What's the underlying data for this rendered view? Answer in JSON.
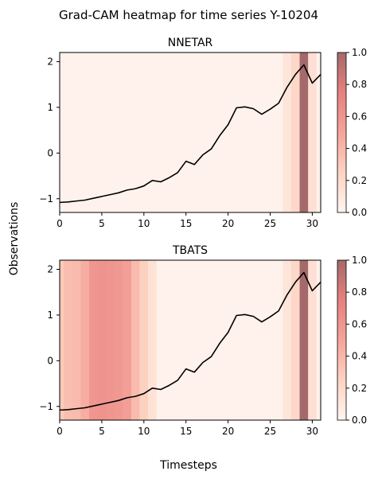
{
  "title": "Grad-CAM heatmap for time series Y-10204",
  "xlabel": "Timesteps",
  "ylabel": "Observations",
  "chart_data": [
    {
      "type": "line",
      "title": "NNETAR",
      "x": [
        0,
        1,
        2,
        3,
        4,
        5,
        6,
        7,
        8,
        9,
        10,
        11,
        12,
        13,
        14,
        15,
        16,
        17,
        18,
        19,
        20,
        21,
        22,
        23,
        24,
        25,
        26,
        27,
        28,
        29,
        30,
        31
      ],
      "y": [
        -1.08,
        -1.07,
        -1.05,
        -1.03,
        -0.99,
        -0.95,
        -0.91,
        -0.87,
        -0.81,
        -0.78,
        -0.72,
        -0.6,
        -0.63,
        -0.54,
        -0.43,
        -0.18,
        -0.25,
        -0.04,
        0.09,
        0.38,
        0.62,
        0.99,
        1.01,
        0.97,
        0.85,
        0.96,
        1.09,
        1.44,
        1.72,
        1.93,
        1.53,
        1.72
      ],
      "xlim": [
        0,
        31
      ],
      "ylim": [
        -1.3,
        2.2
      ],
      "xticks": [
        0,
        5,
        10,
        15,
        20,
        25,
        30
      ],
      "yticks": [
        -1,
        0,
        1,
        2
      ],
      "heatmap": [
        0.02,
        0.02,
        0.02,
        0.02,
        0.02,
        0.02,
        0.02,
        0.02,
        0.02,
        0.02,
        0.02,
        0.02,
        0.02,
        0.02,
        0.02,
        0.02,
        0.02,
        0.02,
        0.02,
        0.02,
        0.02,
        0.02,
        0.02,
        0.02,
        0.02,
        0.02,
        0.02,
        0.12,
        0.22,
        1.0,
        0.16,
        0.02
      ],
      "colorbar": {
        "range": [
          0,
          1
        ],
        "ticks": [
          "0.0",
          "0.2",
          "0.4",
          "0.6",
          "0.8",
          "1.0"
        ]
      }
    },
    {
      "type": "line",
      "title": "TBATS",
      "x": [
        0,
        1,
        2,
        3,
        4,
        5,
        6,
        7,
        8,
        9,
        10,
        11,
        12,
        13,
        14,
        15,
        16,
        17,
        18,
        19,
        20,
        21,
        22,
        23,
        24,
        25,
        26,
        27,
        28,
        29,
        30,
        31
      ],
      "y": [
        -1.08,
        -1.07,
        -1.05,
        -1.03,
        -0.99,
        -0.95,
        -0.91,
        -0.87,
        -0.81,
        -0.78,
        -0.72,
        -0.6,
        -0.63,
        -0.54,
        -0.43,
        -0.18,
        -0.25,
        -0.04,
        0.09,
        0.38,
        0.62,
        0.99,
        1.01,
        0.97,
        0.85,
        0.96,
        1.09,
        1.44,
        1.72,
        1.93,
        1.53,
        1.72
      ],
      "xlim": [
        0,
        31
      ],
      "ylim": [
        -1.3,
        2.2
      ],
      "xticks": [
        0,
        5,
        10,
        15,
        20,
        25,
        30
      ],
      "yticks": [
        -1,
        0,
        1,
        2
      ],
      "heatmap": [
        0.3,
        0.36,
        0.38,
        0.45,
        0.6,
        0.62,
        0.6,
        0.58,
        0.54,
        0.38,
        0.26,
        0.14,
        0.02,
        0.02,
        0.02,
        0.02,
        0.02,
        0.02,
        0.02,
        0.02,
        0.02,
        0.02,
        0.02,
        0.02,
        0.02,
        0.02,
        0.02,
        0.12,
        0.22,
        1.0,
        0.16,
        0.02
      ],
      "colorbar": {
        "range": [
          0,
          1
        ],
        "ticks": [
          "0.0",
          "0.2",
          "0.4",
          "0.6",
          "0.8",
          "1.0"
        ]
      }
    }
  ]
}
